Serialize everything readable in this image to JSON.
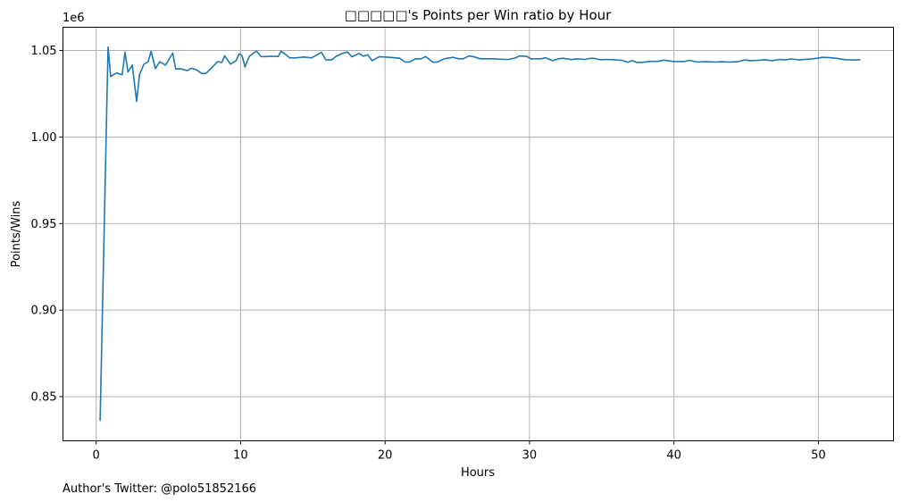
{
  "chart_data": {
    "type": "line",
    "title": "□□□□□'s Points per Win ratio by Hour",
    "xlabel": "Hours",
    "ylabel": "Points/Wins",
    "y_offset_text": "1e6",
    "xlim": [
      -2.3,
      55.2
    ],
    "ylim": [
      0.8245,
      1.0634
    ],
    "x_ticks": [
      0,
      10,
      20,
      30,
      40,
      50
    ],
    "x_tick_labels": [
      "0",
      "10",
      "20",
      "30",
      "40",
      "50"
    ],
    "y_ticks": [
      0.85,
      0.9,
      0.95,
      1.0,
      1.05
    ],
    "y_tick_labels": [
      "0.85",
      "0.90",
      "0.95",
      "1.00",
      "1.05"
    ],
    "grid": true,
    "legend": "none",
    "line_color": "#1f77b4",
    "series": [
      {
        "x": [
          0.27,
          0.82,
          1.0,
          1.4,
          1.8,
          2.0,
          2.2,
          2.5,
          2.8,
          3.0,
          3.3,
          3.6,
          3.8,
          4.1,
          4.4,
          4.8,
          5.3,
          5.5,
          5.9,
          6.3,
          6.6,
          6.9,
          7.3,
          7.6,
          8.1,
          8.4,
          8.7,
          8.9,
          9.3,
          9.7,
          9.9,
          10.1,
          10.3,
          10.6,
          11.1,
          11.4,
          11.8,
          12.2,
          12.6,
          12.8,
          13.1,
          13.4,
          13.8,
          14.4,
          14.9,
          15.3,
          15.6,
          15.9,
          16.3,
          16.6,
          17.0,
          17.4,
          17.7,
          18.2,
          18.5,
          18.8,
          19.1,
          19.6,
          20.0,
          21.0,
          21.4,
          21.7,
          22.1,
          22.5,
          22.8,
          23.3,
          23.6,
          24.1,
          24.7,
          25.1,
          25.4,
          25.8,
          26.1,
          26.6,
          27.5,
          28.2,
          28.6,
          29.0,
          29.3,
          29.8,
          30.1,
          30.8,
          31.1,
          31.6,
          32.0,
          32.3,
          32.9,
          33.3,
          33.8,
          34.1,
          34.4,
          34.9,
          35.3,
          35.8,
          36.4,
          36.8,
          37.1,
          37.4,
          37.8,
          38.4,
          38.9,
          39.3,
          40.0,
          40.7,
          41.1,
          41.6,
          42.2,
          42.9,
          43.3,
          43.8,
          44.4,
          44.9,
          45.3,
          45.8,
          46.3,
          46.8,
          47.3,
          47.7,
          48.1,
          48.7,
          49.1,
          49.6,
          49.9,
          50.3,
          50.8,
          51.2,
          51.6,
          51.9,
          52.4,
          52.9
        ],
        "y": [
          0.836,
          1.052,
          1.035,
          1.037,
          1.036,
          1.049,
          1.0375,
          1.0415,
          1.0205,
          1.036,
          1.042,
          1.0435,
          1.0495,
          1.0395,
          1.0435,
          1.0415,
          1.0485,
          1.0393,
          1.0393,
          1.0383,
          1.0397,
          1.039,
          1.0367,
          1.0367,
          1.0409,
          1.0435,
          1.0431,
          1.0469,
          1.0421,
          1.0442,
          1.0481,
          1.0469,
          1.0405,
          1.0466,
          1.0497,
          1.0465,
          1.0465,
          1.0467,
          1.0465,
          1.0495,
          1.0478,
          1.0457,
          1.0457,
          1.0462,
          1.0457,
          1.0475,
          1.0489,
          1.0445,
          1.0445,
          1.0466,
          1.0482,
          1.0491,
          1.0463,
          1.0483,
          1.0467,
          1.0475,
          1.0441,
          1.0464,
          1.0462,
          1.0455,
          1.0433,
          1.0433,
          1.0452,
          1.0452,
          1.0465,
          1.0432,
          1.0433,
          1.0452,
          1.046,
          1.0452,
          1.0452,
          1.0468,
          1.0465,
          1.0452,
          1.0452,
          1.0448,
          1.0449,
          1.0456,
          1.0468,
          1.0466,
          1.0452,
          1.0452,
          1.0458,
          1.0441,
          1.0452,
          1.0455,
          1.0447,
          1.0452,
          1.0448,
          1.0453,
          1.0455,
          1.0446,
          1.0448,
          1.0446,
          1.0443,
          1.0431,
          1.0441,
          1.0431,
          1.0431,
          1.0437,
          1.0437,
          1.0444,
          1.0436,
          1.0436,
          1.0443,
          1.0433,
          1.0436,
          1.0433,
          1.0436,
          1.0433,
          1.0435,
          1.0445,
          1.0441,
          1.0443,
          1.0446,
          1.0441,
          1.0448,
          1.0445,
          1.0451,
          1.0445,
          1.0448,
          1.0452,
          1.0455,
          1.046,
          1.0458,
          1.0455,
          1.045,
          1.0446,
          1.0445,
          1.0445
        ]
      }
    ]
  },
  "footer": {
    "credit": "Author's Twitter: @polo51852166"
  }
}
